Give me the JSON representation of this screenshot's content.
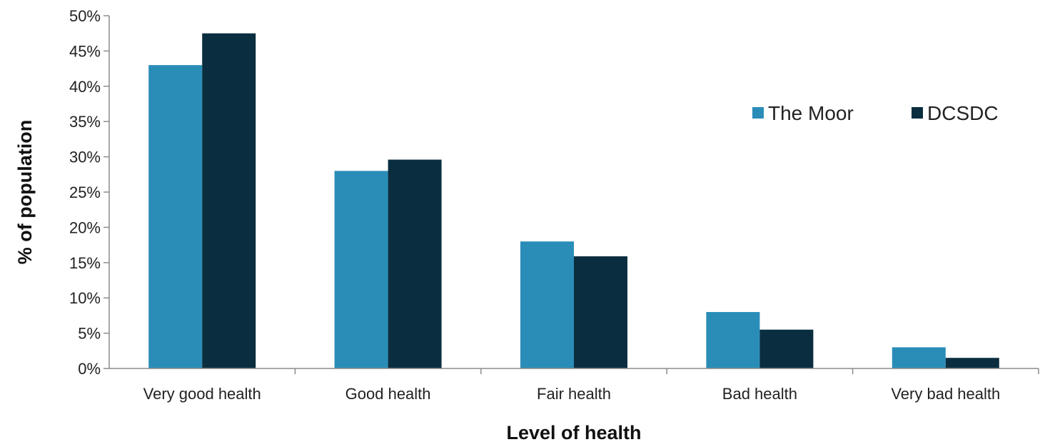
{
  "chart_data": {
    "type": "bar",
    "title": "",
    "xlabel": "Level of health",
    "ylabel": "% of population",
    "categories": [
      "Very good health",
      "Good health",
      "Fair health",
      "Bad health",
      "Very bad health"
    ],
    "series": [
      {
        "name": "The Moor",
        "color": "#2a8db8",
        "values": [
          43,
          28,
          18,
          8,
          3
        ]
      },
      {
        "name": "DCSDC",
        "color": "#0a2e3f",
        "values": [
          47.5,
          29.6,
          15.9,
          5.5,
          1.5
        ]
      }
    ],
    "ylim": [
      0,
      50
    ],
    "yticks": [
      0,
      5,
      10,
      15,
      20,
      25,
      30,
      35,
      40,
      45,
      50
    ],
    "ytick_labels": [
      "0%",
      "5%",
      "10%",
      "15%",
      "20%",
      "25%",
      "30%",
      "35%",
      "40%",
      "45%",
      "50%"
    ],
    "grid": false,
    "legend_position": "top-right"
  }
}
